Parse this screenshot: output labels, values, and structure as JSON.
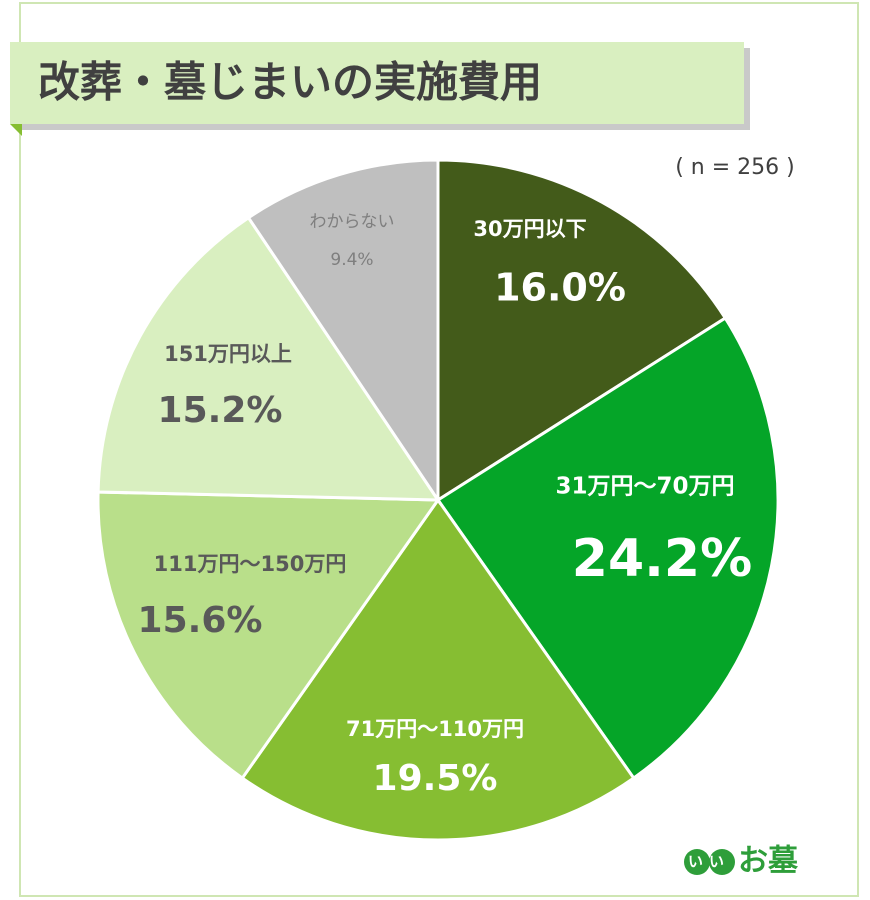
{
  "chart_data": {
    "type": "pie",
    "title": "改葬・墓じまいの実施費用",
    "note": "( n = 256 )",
    "categories": [
      "30万円以下",
      "31万円～70万円",
      "71万円～110万円",
      "111万円～150万円",
      "151万円以上",
      "わからない"
    ],
    "values": [
      16.0,
      24.2,
      19.5,
      15.6,
      15.2,
      9.4
    ],
    "value_labels": [
      "16.0%",
      "24.2%",
      "19.5%",
      "15.6%",
      "15.2%",
      "9.4%"
    ],
    "colors": [
      "#435b1a",
      "#05a528",
      "#86be32",
      "#b9df8a",
      "#d9efc0",
      "#bfbfbf"
    ],
    "logo_mark": "いい",
    "logo_text": "お墓"
  }
}
